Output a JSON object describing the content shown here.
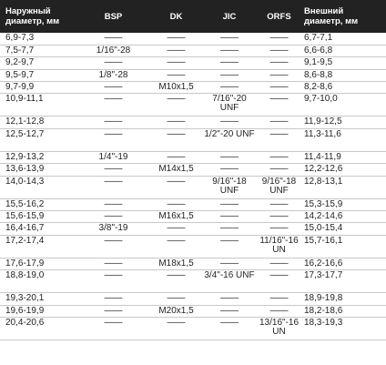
{
  "headers": [
    "Наружный диаметр, мм",
    "BSP",
    "DK",
    "JIC",
    "ORFS",
    "Внешний диаметр, мм"
  ],
  "rows": [
    {
      "outer": "6,9-7,3",
      "bsp": "——",
      "dk": "——",
      "jic": "——",
      "orfs": "——",
      "inner": "6,7-7,1"
    },
    {
      "outer": "7,5-7,7",
      "bsp": "1/16\"-28",
      "dk": "——",
      "jic": "——",
      "orfs": "——",
      "inner": "6,6-6,8"
    },
    {
      "outer": "9,2-9,7",
      "bsp": "——",
      "dk": "——",
      "jic": "——",
      "orfs": "——",
      "inner": "9,1-9,5"
    },
    {
      "outer": "9,5-9,7",
      "bsp": "1/8\"-28",
      "dk": "——",
      "jic": "——",
      "orfs": "——",
      "inner": "8,6-8,8"
    },
    {
      "outer": "9,7-9,9",
      "bsp": "——",
      "dk": "M10x1,5",
      "jic": "——",
      "orfs": "——",
      "inner": "8,2-8,6"
    },
    {
      "outer": "10,9-11,1",
      "bsp": "——",
      "dk": "——",
      "jic": "7/16\"-20 UNF",
      "orfs": "——",
      "inner": "9,7-10,0"
    },
    {
      "outer": "12,1-12,8",
      "bsp": "——",
      "dk": "——",
      "jic": "——",
      "orfs": "——",
      "inner": "11,9-12,5"
    },
    {
      "outer": "12,5-12,7",
      "bsp": "——",
      "dk": "——",
      "jic": "1/2\"-20 UNF",
      "orfs": "——",
      "inner": "11,3-11,6"
    },
    {
      "outer": "12,9-13,2",
      "bsp": "1/4\"-19",
      "dk": "——",
      "jic": "——",
      "orfs": "——",
      "inner": "11,4-11,9"
    },
    {
      "outer": "13,6-13,9",
      "bsp": "——",
      "dk": "M14x1,5",
      "jic": "——",
      "orfs": "——",
      "inner": "12,2-12,6"
    },
    {
      "outer": "14,0-14,3",
      "bsp": "——",
      "dk": "——",
      "jic": "9/16\"-18 UNF",
      "orfs": "9/16\"-18 UNF",
      "inner": "12,8-13,1"
    },
    {
      "outer": "15,5-16,2",
      "bsp": "——",
      "dk": "——",
      "jic": "——",
      "orfs": "——",
      "inner": "15,3-15,9"
    },
    {
      "outer": "15,6-15,9",
      "bsp": "——",
      "dk": "M16x1,5",
      "jic": "——",
      "orfs": "——",
      "inner": "14,2-14,6"
    },
    {
      "outer": "16,4-16,7",
      "bsp": "3/8\"-19",
      "dk": "——",
      "jic": "——",
      "orfs": "——",
      "inner": "15,0-15,4"
    },
    {
      "outer": "17,2-17,4",
      "bsp": "——",
      "dk": "——",
      "jic": "——",
      "orfs": "11/16\"-16 UN",
      "inner": "15,7-16,1"
    },
    {
      "outer": "17,6-17,9",
      "bsp": "——",
      "dk": "M18x1,5",
      "jic": "——",
      "orfs": "——",
      "inner": "16,2-16,6"
    },
    {
      "outer": "18,8-19,0",
      "bsp": "——",
      "dk": "——",
      "jic": "3/4\"-16 UNF",
      "orfs": "——",
      "inner": "17,3-17,7"
    },
    {
      "outer": "19,3-20,1",
      "bsp": "——",
      "dk": "——",
      "jic": "——",
      "orfs": "——",
      "inner": "18,9-19,8"
    },
    {
      "outer": "19,6-19,9",
      "bsp": "——",
      "dk": "M20x1,5",
      "jic": "——",
      "orfs": "——",
      "inner": "18,2-18,6"
    },
    {
      "outer": "20,4-20,6",
      "bsp": "——",
      "dk": "——",
      "jic": "——",
      "orfs": "13/16\"-16 UN",
      "inner": "18,3-19,3"
    }
  ]
}
